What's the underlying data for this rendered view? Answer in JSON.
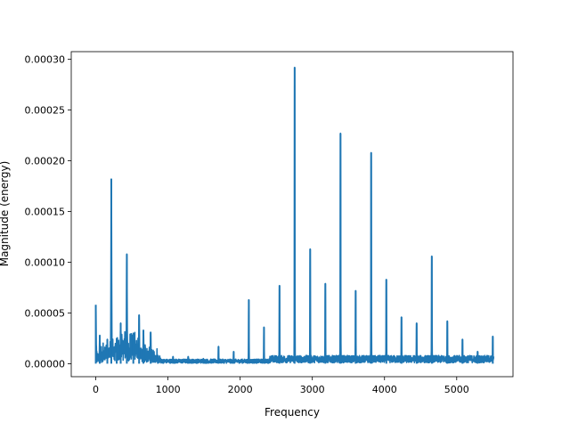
{
  "chart_data": {
    "type": "line",
    "title": "",
    "xlabel": "Frequency",
    "ylabel": "Magnitude (energy)",
    "xlim": [
      -340,
      5780
    ],
    "ylim": [
      -1.28e-05,
      0.0003075
    ],
    "x_ticks": [
      0,
      1000,
      2000,
      3000,
      4000,
      5000
    ],
    "x_tick_labels": [
      "0",
      "1000",
      "2000",
      "3000",
      "4000",
      "5000"
    ],
    "y_ticks": [
      0,
      5e-05,
      0.0001,
      0.00015,
      0.0002,
      0.00025,
      0.0003
    ],
    "y_tick_labels": [
      "0.00000",
      "0.00005",
      "0.00010",
      "0.00015",
      "0.00020",
      "0.00025",
      "0.00030"
    ],
    "grid": false,
    "legend": "none",
    "series": [
      {
        "color": "#1f77b4",
        "peaks": [
          {
            "x": 0,
            "y": 5.8e-05
          },
          {
            "x": 55,
            "y": 2.8e-05
          },
          {
            "x": 160,
            "y": 2.4e-05
          },
          {
            "x": 215,
            "y": 0.000182
          },
          {
            "x": 290,
            "y": 2.5e-05
          },
          {
            "x": 345,
            "y": 4e-05
          },
          {
            "x": 430,
            "y": 0.000108
          },
          {
            "x": 520,
            "y": 3e-05
          },
          {
            "x": 600,
            "y": 4.8e-05
          },
          {
            "x": 660,
            "y": 3.3e-05
          },
          {
            "x": 760,
            "y": 3.1e-05
          },
          {
            "x": 860,
            "y": 8e-06
          },
          {
            "x": 1070,
            "y": 7e-06
          },
          {
            "x": 1280,
            "y": 7e-06
          },
          {
            "x": 1490,
            "y": 5e-06
          },
          {
            "x": 1700,
            "y": 1.7e-05
          },
          {
            "x": 1910,
            "y": 1.2e-05
          },
          {
            "x": 2120,
            "y": 6.3e-05
          },
          {
            "x": 2330,
            "y": 3.6e-05
          },
          {
            "x": 2545,
            "y": 7.7e-05
          },
          {
            "x": 2755,
            "y": 0.000292
          },
          {
            "x": 2970,
            "y": 0.000113
          },
          {
            "x": 3180,
            "y": 7.9e-05
          },
          {
            "x": 3390,
            "y": 0.000227
          },
          {
            "x": 3600,
            "y": 7.2e-05
          },
          {
            "x": 3815,
            "y": 0.000208
          },
          {
            "x": 4025,
            "y": 8.3e-05
          },
          {
            "x": 4235,
            "y": 4.6e-05
          },
          {
            "x": 4445,
            "y": 4e-05
          },
          {
            "x": 4655,
            "y": 0.000106
          },
          {
            "x": 4870,
            "y": 4.2e-05
          },
          {
            "x": 5080,
            "y": 2.4e-05
          },
          {
            "x": 5290,
            "y": 1.2e-05
          },
          {
            "x": 5500,
            "y": 2.7e-05
          }
        ]
      }
    ]
  }
}
